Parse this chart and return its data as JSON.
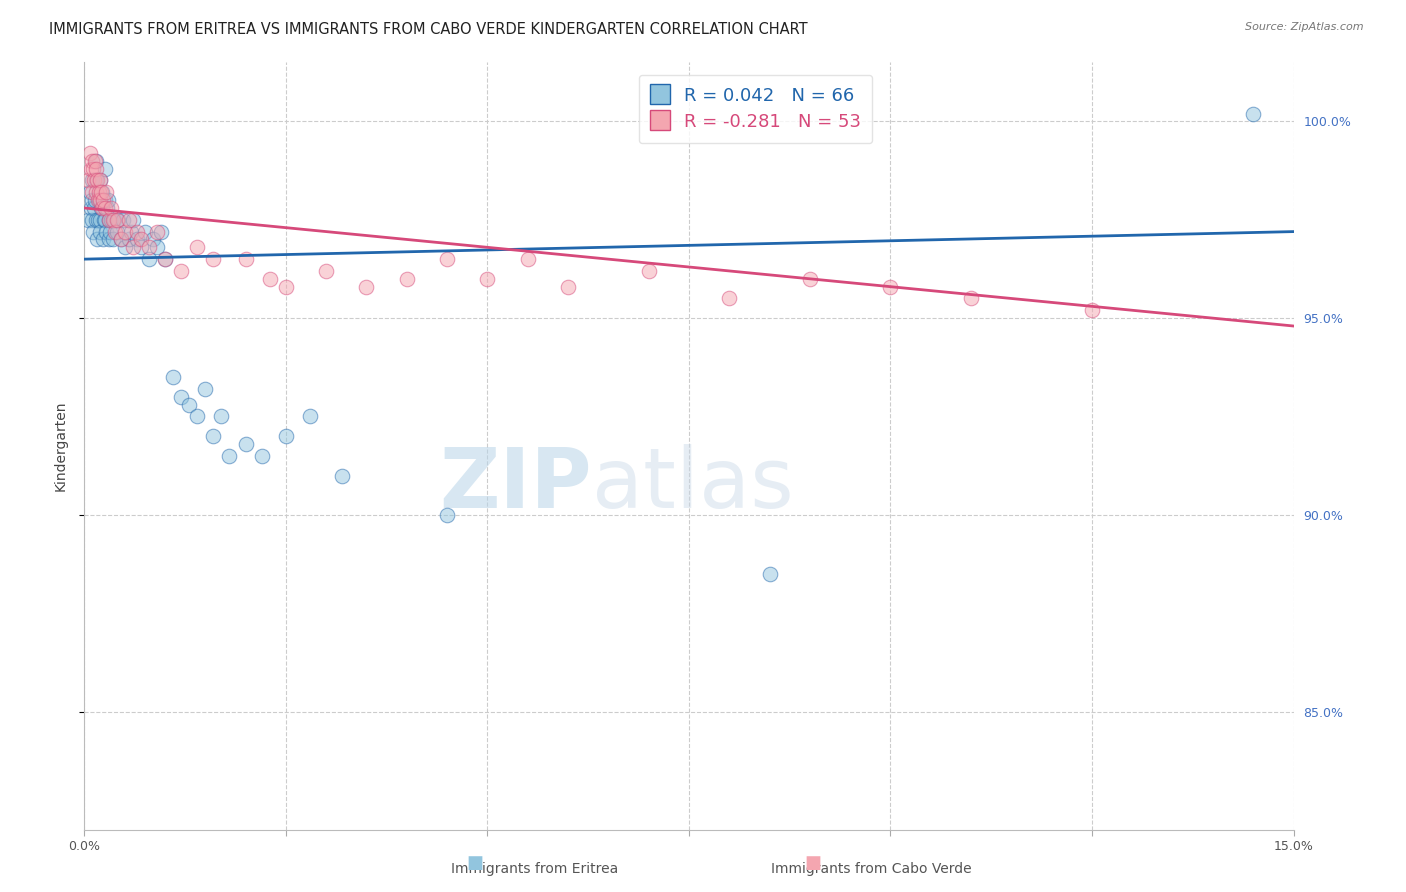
{
  "title": "IMMIGRANTS FROM ERITREA VS IMMIGRANTS FROM CABO VERDE KINDERGARTEN CORRELATION CHART",
  "source": "Source: ZipAtlas.com",
  "ylabel": "Kindergarten",
  "xmin": 0.0,
  "xmax": 15.0,
  "ymin": 82.0,
  "ymax": 101.5,
  "yticks": [
    85.0,
    90.0,
    95.0,
    100.0
  ],
  "ytick_labels": [
    "85.0%",
    "90.0%",
    "95.0%",
    "100.0%"
  ],
  "legend_eritrea": "Immigrants from Eritrea",
  "legend_cabo": "Immigrants from Cabo Verde",
  "R_eritrea": 0.042,
  "N_eritrea": 66,
  "R_cabo": -0.281,
  "N_cabo": 53,
  "color_eritrea": "#92c5de",
  "color_cabo": "#f4a6b0",
  "line_color_eritrea": "#2166ac",
  "line_color_cabo": "#d6497a",
  "eritrea_x": [
    0.05,
    0.07,
    0.08,
    0.09,
    0.1,
    0.1,
    0.11,
    0.12,
    0.13,
    0.14,
    0.15,
    0.15,
    0.16,
    0.17,
    0.18,
    0.19,
    0.2,
    0.2,
    0.21,
    0.22,
    0.23,
    0.24,
    0.25,
    0.25,
    0.26,
    0.27,
    0.28,
    0.29,
    0.3,
    0.31,
    0.32,
    0.33,
    0.35,
    0.37,
    0.4,
    0.42,
    0.45,
    0.48,
    0.5,
    0.55,
    0.58,
    0.6,
    0.65,
    0.7,
    0.75,
    0.8,
    0.85,
    0.9,
    0.95,
    1.0,
    1.1,
    1.2,
    1.3,
    1.4,
    1.5,
    1.6,
    1.7,
    1.8,
    2.0,
    2.2,
    2.5,
    2.8,
    3.2,
    4.5,
    8.5,
    14.5
  ],
  "eritrea_y": [
    97.5,
    98.2,
    97.8,
    98.0,
    97.5,
    98.5,
    97.2,
    97.8,
    98.0,
    97.5,
    99.0,
    98.5,
    97.0,
    97.5,
    98.0,
    97.5,
    98.5,
    97.2,
    97.8,
    98.2,
    97.0,
    97.5,
    98.0,
    98.8,
    97.5,
    97.2,
    97.8,
    98.0,
    97.5,
    97.0,
    97.2,
    97.5,
    97.0,
    97.5,
    97.2,
    97.5,
    97.0,
    97.5,
    96.8,
    97.0,
    97.2,
    97.5,
    97.0,
    96.8,
    97.2,
    96.5,
    97.0,
    96.8,
    97.2,
    96.5,
    93.5,
    93.0,
    92.8,
    92.5,
    93.2,
    92.0,
    92.5,
    91.5,
    91.8,
    91.5,
    92.0,
    92.5,
    91.0,
    90.0,
    88.5,
    100.2
  ],
  "cabo_x": [
    0.05,
    0.07,
    0.08,
    0.09,
    0.1,
    0.11,
    0.12,
    0.13,
    0.14,
    0.15,
    0.16,
    0.17,
    0.18,
    0.19,
    0.2,
    0.21,
    0.22,
    0.23,
    0.25,
    0.27,
    0.3,
    0.33,
    0.35,
    0.38,
    0.4,
    0.45,
    0.5,
    0.55,
    0.6,
    0.65,
    0.7,
    0.8,
    0.9,
    1.0,
    1.2,
    1.4,
    1.6,
    2.0,
    2.3,
    2.5,
    3.0,
    3.5,
    4.0,
    4.5,
    5.0,
    5.5,
    6.0,
    7.0,
    8.0,
    9.0,
    10.0,
    11.0,
    12.5
  ],
  "cabo_y": [
    98.5,
    99.2,
    98.8,
    99.0,
    98.2,
    98.8,
    98.5,
    99.0,
    98.2,
    98.8,
    98.5,
    98.0,
    98.2,
    98.5,
    98.0,
    98.2,
    97.8,
    98.0,
    97.8,
    98.2,
    97.5,
    97.8,
    97.5,
    97.2,
    97.5,
    97.0,
    97.2,
    97.5,
    96.8,
    97.2,
    97.0,
    96.8,
    97.2,
    96.5,
    96.2,
    96.8,
    96.5,
    96.5,
    96.0,
    95.8,
    96.2,
    95.8,
    96.0,
    96.5,
    96.0,
    96.5,
    95.8,
    96.2,
    95.5,
    96.0,
    95.8,
    95.5,
    95.2
  ],
  "watermark_zip": "ZIP",
  "watermark_atlas": "atlas",
  "background_color": "#ffffff",
  "grid_color": "#cccccc",
  "title_fontsize": 10.5,
  "label_fontsize": 10,
  "tick_fontsize": 9,
  "legend_fontsize": 12
}
